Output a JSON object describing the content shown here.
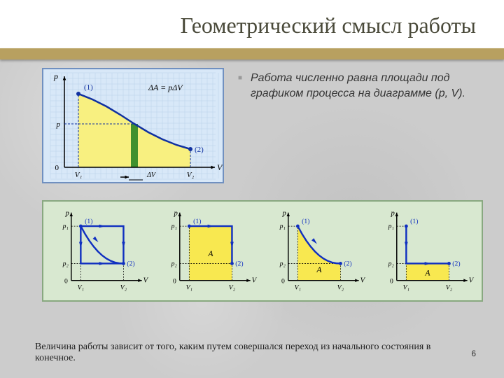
{
  "title": "Геометрический смысл работы",
  "bullet": "Работа численно равна площади под графиком процесса на диаграмме (p, V).",
  "footer": "Величина работы зависит от того, каким путем совершался переход из начального состояния в конечное.",
  "page_number": "6",
  "main_diagram": {
    "bg": "#d8e8f8",
    "grid_color": "#b8d0e8",
    "axis_color": "#000000",
    "curve_color": "#1030a0",
    "curve_width": 2.5,
    "fill_color": "#f8f080",
    "slice_color": "#208020",
    "dash_color": "#1030a0",
    "text_color": "#000000",
    "xlabel": "V",
    "ylabel": "p",
    "xticks": [
      "V₁",
      "V₂"
    ],
    "ytick": "p",
    "pt1_label": "(1)",
    "pt2_label": "(2)",
    "formula": "ΔA = pΔV",
    "deltaV_label": "ΔV",
    "curve": [
      [
        50,
        35
      ],
      [
        70,
        43
      ],
      [
        90,
        53
      ],
      [
        110,
        65
      ],
      [
        130,
        78
      ],
      [
        150,
        90
      ],
      [
        170,
        100
      ],
      [
        190,
        108
      ],
      [
        210,
        114
      ]
    ]
  },
  "small_diagrams": {
    "common": {
      "axis_color": "#000000",
      "curve_color": "#1030c0",
      "curve_width": 2.5,
      "fill_color": "#f8e850",
      "dash_color": "#000000",
      "text_color": "#000000",
      "xlabel": "V",
      "ylabel": "p",
      "v1": "V₁",
      "v2": "V₂",
      "p1": "p₁",
      "p2": "p₂",
      "pt1": "(1)",
      "pt2": "(2)",
      "A_label": "A"
    },
    "panels": [
      {
        "type": "multipath",
        "show_A": false,
        "has_curve": true
      },
      {
        "type": "rect_top",
        "show_A": true,
        "has_curve": false
      },
      {
        "type": "curve",
        "show_A": true,
        "has_curve": true
      },
      {
        "type": "rect_bot",
        "show_A": true,
        "has_curve": false
      }
    ]
  }
}
